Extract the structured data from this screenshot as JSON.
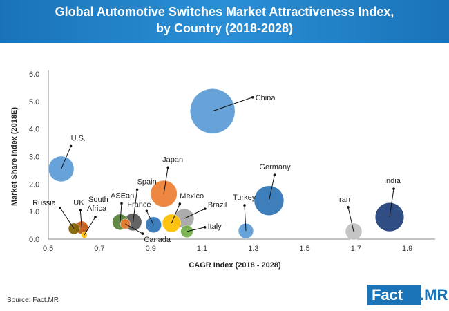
{
  "header": {
    "title_line1": "Global Automotive Switches Market Attractiveness Index,",
    "title_line2": "by Country (2018-2028)"
  },
  "footer": {
    "source": "Source: Fact.MR",
    "logo_fact": "Fact",
    "logo_mr": ".MR"
  },
  "chart_data": {
    "type": "bubble",
    "title": "Global Automotive Switches Market Attractiveness Index, by Country (2018-2028)",
    "xlabel": "CAGR Index (2018 - 2028)",
    "ylabel": "Market Share Index (2018E)",
    "xlim": [
      0.5,
      1.9
    ],
    "ylim": [
      0.0,
      6.0
    ],
    "x_ticks": [
      "0.5",
      "0.7",
      "0.9",
      "1.1",
      "1.3",
      "1.5",
      "1.7",
      "1.9"
    ],
    "y_ticks": [
      "0.0",
      "1.0",
      "2.0",
      "3.0",
      "4.0",
      "5.0",
      "6.0"
    ],
    "points": [
      {
        "name": "China",
        "x": 1.14,
        "y": 4.65,
        "size": 8.0,
        "color": "#5b9bd5"
      },
      {
        "name": "U.S.",
        "x": 0.55,
        "y": 2.55,
        "size": 2.6,
        "color": "#5b9bd5"
      },
      {
        "name": "Japan",
        "x": 0.95,
        "y": 1.65,
        "size": 2.8,
        "color": "#ed7d31"
      },
      {
        "name": "Germany",
        "x": 1.36,
        "y": 1.4,
        "size": 3.5,
        "color": "#2e75b6"
      },
      {
        "name": "India",
        "x": 1.83,
        "y": 0.8,
        "size": 3.3,
        "color": "#1f3f7a"
      },
      {
        "name": "Russia",
        "x": 0.6,
        "y": 0.38,
        "size": 0.5,
        "color": "#806000"
      },
      {
        "name": "UK",
        "x": 0.63,
        "y": 0.42,
        "size": 0.65,
        "color": "#c55a11"
      },
      {
        "name": "South Africa",
        "x": 0.64,
        "y": 0.15,
        "size": 0.15,
        "color": "#ffc000"
      },
      {
        "name": "ASEan",
        "x": 0.78,
        "y": 0.62,
        "size": 1.0,
        "color": "#548235"
      },
      {
        "name": "Spain",
        "x": 0.83,
        "y": 0.62,
        "size": 1.2,
        "color": "#595959"
      },
      {
        "name": "Canada",
        "x": 0.8,
        "y": 0.55,
        "size": 0.4,
        "color": "#ed7d31"
      },
      {
        "name": "France",
        "x": 0.91,
        "y": 0.52,
        "size": 1.0,
        "color": "#2e75b6"
      },
      {
        "name": "Mexico",
        "x": 0.98,
        "y": 0.58,
        "size": 1.3,
        "color": "#ffc000"
      },
      {
        "name": "Brazil",
        "x": 1.03,
        "y": 0.75,
        "size": 1.5,
        "color": "#a5a5a5"
      },
      {
        "name": "Italy",
        "x": 1.04,
        "y": 0.28,
        "size": 0.6,
        "color": "#70ad47"
      },
      {
        "name": "Turkey",
        "x": 1.27,
        "y": 0.3,
        "size": 0.9,
        "color": "#5b9bd5"
      },
      {
        "name": "Iran",
        "x": 1.69,
        "y": 0.28,
        "size": 1.1,
        "color": "#bfbfbf"
      }
    ]
  }
}
